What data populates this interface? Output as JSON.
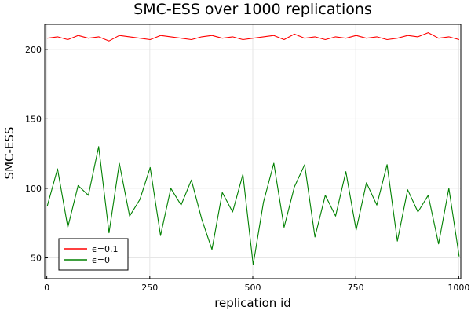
{
  "chart_data": {
    "type": "line",
    "title": "SMC-ESS over 1000 replications",
    "xlabel": "replication id",
    "ylabel": "SMC-ESS",
    "xlim": [
      -5,
      1005
    ],
    "ylim": [
      35,
      218
    ],
    "xticks": [
      0,
      250,
      500,
      750,
      1000
    ],
    "xtick_labels": [
      "0",
      "250",
      "500",
      "750",
      "1000"
    ],
    "yticks": [
      50,
      100,
      150,
      200
    ],
    "ytick_labels": [
      "50",
      "100",
      "150",
      "200"
    ],
    "grid": true,
    "legend_position": "bottom-left",
    "series": [
      {
        "name": "ϵ=0.1",
        "color": "#ff0000",
        "x_start": 1,
        "x_step": 25,
        "values": [
          208,
          209,
          207,
          210,
          208,
          209,
          206,
          210,
          209,
          208,
          207,
          210,
          209,
          208,
          207,
          209,
          210,
          208,
          209,
          207,
          208,
          209,
          210,
          207,
          211,
          208,
          209,
          207,
          209,
          208,
          210,
          208,
          209,
          207,
          208,
          210,
          209,
          212,
          208,
          209,
          207
        ]
      },
      {
        "name": "ϵ=0",
        "color": "#008000",
        "x_start": 1,
        "x_step": 25,
        "values": [
          87,
          114,
          72,
          102,
          95,
          130,
          68,
          118,
          80,
          92,
          115,
          66,
          100,
          88,
          106,
          78,
          56,
          97,
          83,
          110,
          45,
          90,
          118,
          72,
          101,
          117,
          65,
          95,
          80,
          112,
          70,
          104,
          88,
          117,
          62,
          99,
          83,
          95,
          60,
          100,
          51
        ]
      }
    ]
  }
}
